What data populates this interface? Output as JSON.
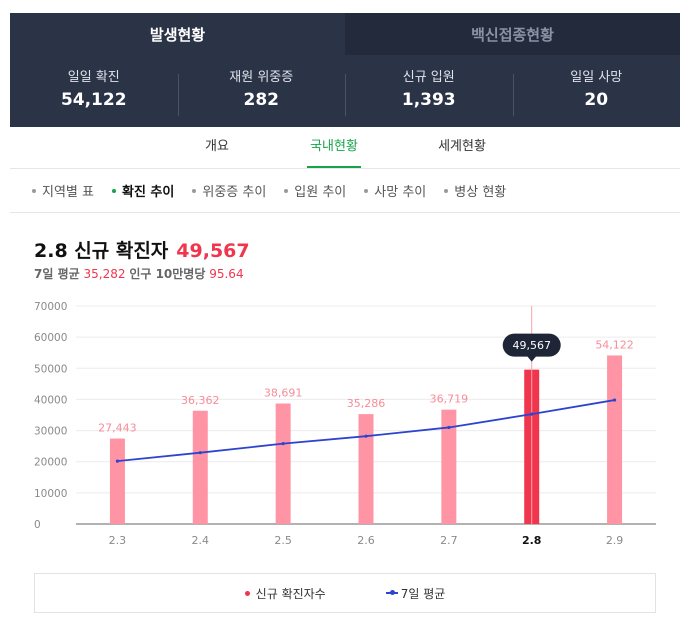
{
  "top_tabs": [
    {
      "label": "발생현황"
    },
    {
      "label": "백신접종현황"
    }
  ],
  "stats": [
    {
      "label": "일일 확진",
      "value": "54,122"
    },
    {
      "label": "재원 위중증",
      "value": "282"
    },
    {
      "label": "신규 입원",
      "value": "1,393"
    },
    {
      "label": "일일 사망",
      "value": "20"
    }
  ],
  "sub_tabs": [
    {
      "label": "개요"
    },
    {
      "label": "국내현황"
    },
    {
      "label": "세계현황"
    }
  ],
  "filters": [
    {
      "label": "지역별 표"
    },
    {
      "label": "확진 추이"
    },
    {
      "label": "위중증 추이"
    },
    {
      "label": "입원 추이"
    },
    {
      "label": "사망 추이"
    },
    {
      "label": "병상 현황"
    }
  ],
  "headline": {
    "title": "2.8 신규 확진자",
    "value": "49,567"
  },
  "subline": {
    "avg_label": "7일 평균",
    "avg_value": "35,282",
    "pop_label": "인구 10만명당",
    "pop_value": "95.64"
  },
  "colors": {
    "bar": "#ff95a4",
    "bar_highlight": "#f0364d",
    "avg_line": "#2c44d0",
    "tooltip": "#1d2536",
    "accent_green": "#17a34a"
  },
  "chart_data": {
    "type": "bar",
    "categories": [
      "2.3",
      "2.4",
      "2.5",
      "2.6",
      "2.7",
      "2.8",
      "2.9"
    ],
    "series": [
      {
        "name": "신규 확진자수",
        "type": "bar",
        "values": [
          27443,
          36362,
          38691,
          35286,
          36719,
          49567,
          54122
        ],
        "labels": [
          "27,443",
          "36,362",
          "38,691",
          "35,286",
          "36,719",
          "49,567",
          "54,122"
        ]
      },
      {
        "name": "7일 평균",
        "type": "line",
        "values": [
          20200,
          22900,
          25800,
          28200,
          31000,
          35282,
          39800
        ]
      }
    ],
    "highlight_category": "2.8",
    "tooltip": "49,567",
    "y_ticks": [
      "0",
      "10000",
      "20000",
      "30000",
      "40000",
      "50000",
      "60000",
      "70000"
    ],
    "ylim": [
      0,
      70000
    ],
    "grid": true
  },
  "legend": {
    "bar_label": "신규 확진자수",
    "line_label": "7일 평균"
  }
}
